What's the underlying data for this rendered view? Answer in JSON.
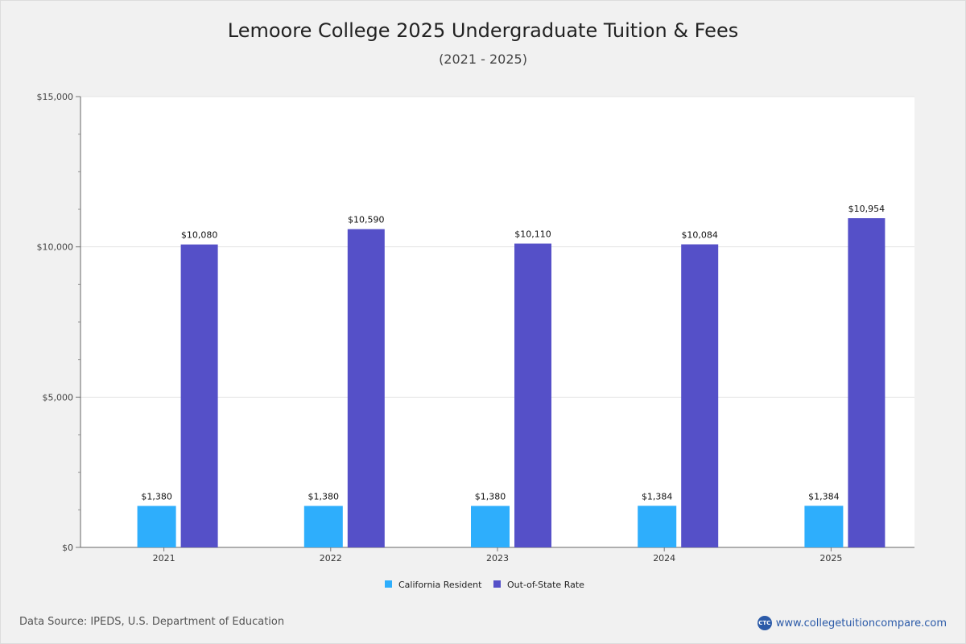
{
  "header": {
    "title": "Lemoore College 2025 Undergraduate Tuition & Fees",
    "subtitle": "(2021 - 2025)"
  },
  "footer": {
    "source": "Data Source: IPEDS, U.S. Department of Education",
    "brand_logo": "CTC",
    "brand_url": "www.collegetuitioncompare.com"
  },
  "colors": {
    "california_resident": "#2eaefc",
    "out_of_state": "#5550c8",
    "plot_bg": "#ffffff",
    "page_bg": "#f1f1f1"
  },
  "chart_data": {
    "type": "bar",
    "categories": [
      "2021",
      "2022",
      "2023",
      "2024",
      "2025"
    ],
    "series": [
      {
        "name": "California Resident",
        "values": [
          1380,
          1380,
          1380,
          1384,
          1384
        ],
        "labels": [
          "$1,380",
          "$1,380",
          "$1,380",
          "$1,384",
          "$1,384"
        ]
      },
      {
        "name": "Out-of-State Rate",
        "values": [
          10080,
          10590,
          10110,
          10084,
          10954
        ],
        "labels": [
          "$10,080",
          "$10,590",
          "$10,110",
          "$10,084",
          "$10,954"
        ]
      }
    ],
    "ylim": [
      0,
      15000
    ],
    "yticks": [
      0,
      5000,
      10000,
      15000
    ],
    "ytick_labels": [
      "$0",
      "$5,000",
      "$10,000",
      "$15,000"
    ],
    "grid": true,
    "legend": "bottom-center"
  }
}
